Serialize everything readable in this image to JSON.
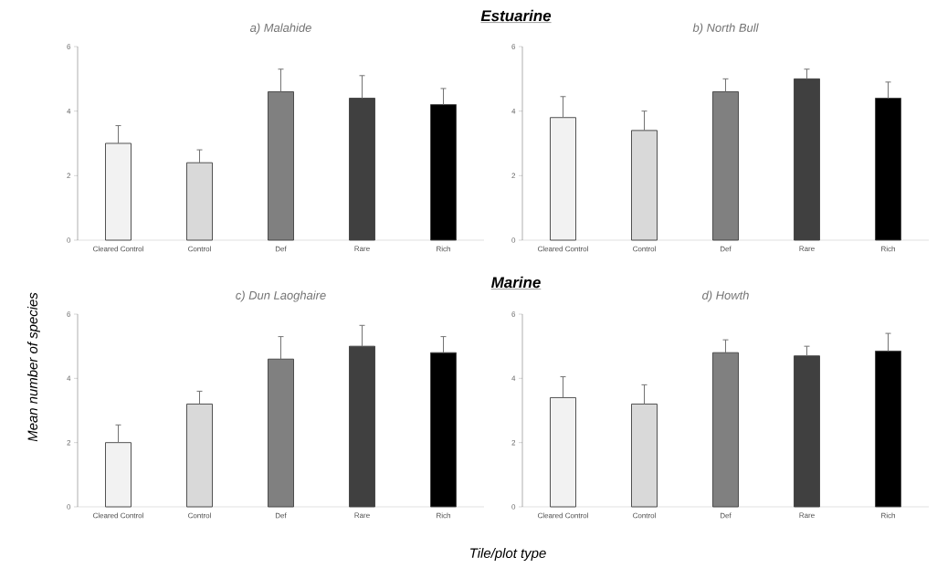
{
  "chart_data": [
    {
      "type": "bar",
      "title": "a) Malahide",
      "categories": [
        "Cleared Control",
        "Control",
        "Def",
        "Rare",
        "Rich"
      ],
      "values": [
        3.0,
        2.4,
        4.6,
        4.4,
        4.2
      ],
      "errors": [
        [
          3.0,
          3.55
        ],
        [
          2.4,
          2.8
        ],
        [
          4.6,
          5.3
        ],
        [
          4.4,
          5.1
        ],
        [
          4.2,
          4.7
        ]
      ],
      "colors": [
        "#f2f2f2",
        "#d9d9d9",
        "#808080",
        "#404040",
        "#000000"
      ],
      "ylim": [
        0,
        6
      ],
      "yticks": [
        0,
        2,
        4,
        6
      ]
    },
    {
      "type": "bar",
      "title": "b) North Bull",
      "categories": [
        "Cleared Control",
        "Control",
        "Def",
        "Rare",
        "Rich"
      ],
      "values": [
        3.8,
        3.4,
        4.6,
        5.0,
        4.4
      ],
      "errors": [
        [
          3.8,
          4.45
        ],
        [
          3.4,
          4.0
        ],
        [
          4.6,
          5.0
        ],
        [
          5.0,
          5.3
        ],
        [
          4.4,
          4.9
        ]
      ],
      "colors": [
        "#f2f2f2",
        "#d9d9d9",
        "#808080",
        "#404040",
        "#000000"
      ],
      "ylim": [
        0,
        6
      ],
      "yticks": [
        0,
        2,
        4,
        6
      ]
    },
    {
      "type": "bar",
      "title": "c) Dun Laoghaire",
      "categories": [
        "Cleared Control",
        "Control",
        "Def",
        "Rare",
        "Rich"
      ],
      "values": [
        2.0,
        3.2,
        4.6,
        5.0,
        4.8
      ],
      "errors": [
        [
          2.0,
          2.55
        ],
        [
          3.2,
          3.6
        ],
        [
          4.6,
          5.3
        ],
        [
          5.0,
          5.65
        ],
        [
          4.8,
          5.3
        ]
      ],
      "colors": [
        "#f2f2f2",
        "#d9d9d9",
        "#808080",
        "#404040",
        "#000000"
      ],
      "ylim": [
        0,
        6
      ],
      "yticks": [
        0,
        2,
        4,
        6
      ]
    },
    {
      "type": "bar",
      "title": "d) Howth",
      "categories": [
        "Cleared Control",
        "Control",
        "Def",
        "Rare",
        "Rich"
      ],
      "values": [
        3.4,
        3.2,
        4.8,
        4.7,
        4.85
      ],
      "errors": [
        [
          3.4,
          4.05
        ],
        [
          3.2,
          3.8
        ],
        [
          4.8,
          5.2
        ],
        [
          4.7,
          5.0
        ],
        [
          4.85,
          5.4
        ]
      ],
      "colors": [
        "#f2f2f2",
        "#d9d9d9",
        "#808080",
        "#404040",
        "#000000"
      ],
      "ylim": [
        0,
        6
      ],
      "yticks": [
        0,
        2,
        4,
        6
      ]
    },
    {
      "type": "other",
      "annotations": [
        "Estuarine",
        "Marine"
      ],
      "ylabel": "Mean number of species",
      "xlabel": "Tile/plot type"
    }
  ]
}
